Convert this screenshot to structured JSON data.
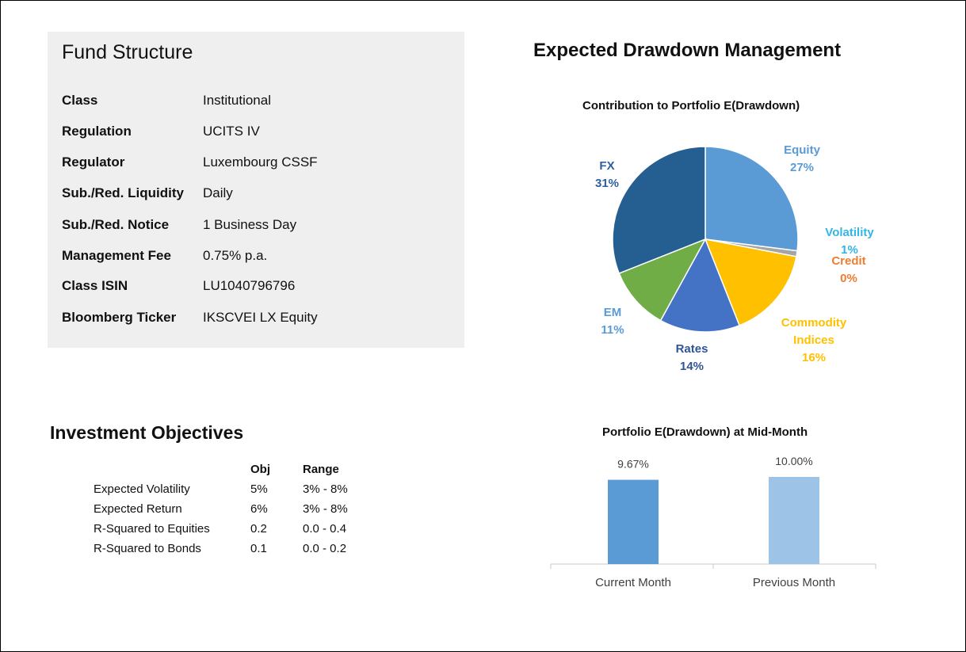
{
  "fund_structure": {
    "title": "Fund Structure",
    "rows": [
      {
        "label": "Class",
        "value": "Institutional"
      },
      {
        "label": "Regulation",
        "value": "UCITS IV"
      },
      {
        "label": "Regulator",
        "value": "Luxembourg CSSF"
      },
      {
        "label": "Sub./Red. Liquidity",
        "value": "Daily"
      },
      {
        "label": "Sub./Red. Notice",
        "value": "1 Business Day"
      },
      {
        "label": "Management Fee",
        "value": "0.75% p.a."
      },
      {
        "label": "Class ISIN",
        "value": "LU1040796796"
      },
      {
        "label": "Bloomberg Ticker",
        "value": "IKSCVEI LX Equity"
      }
    ]
  },
  "drawdown": {
    "title": "Expected Drawdown Management"
  },
  "objectives": {
    "title": "Investment Objectives",
    "headers": {
      "obj": "Obj",
      "range": "Range"
    },
    "rows": [
      {
        "label": "Expected Volatility",
        "obj": "5%",
        "range": "3% - 8%"
      },
      {
        "label": "Expected Return",
        "obj": "6%",
        "range": "3% - 8%"
      },
      {
        "label": "R-Squared to Equities",
        "obj": "0.2",
        "range": "0.0 - 0.4"
      },
      {
        "label": "R-Squared to Bonds",
        "obj": "0.1",
        "range": "0.0 - 0.2"
      }
    ]
  },
  "chart_data": [
    {
      "type": "pie",
      "title": "Contribution to Portfolio E(Drawdown)",
      "slices": [
        {
          "name": "Equity",
          "value": 27,
          "label": "27%",
          "color": "#5b9bd5",
          "label_color": "#5b9bd5"
        },
        {
          "name": "Volatility",
          "value": 1,
          "label": "1%",
          "color": "#a5a5a5",
          "label_color": "#33b5e5"
        },
        {
          "name": "Credit",
          "value": 0,
          "label": "0%",
          "color": "#ed7d31",
          "label_color": "#ed7d31"
        },
        {
          "name": "Commodity Indices",
          "value": 16,
          "label": "16%",
          "color": "#ffc000",
          "label_color": "#ffc000"
        },
        {
          "name": "Rates",
          "value": 14,
          "label": "14%",
          "color": "#4472c4",
          "label_color": "#2f5597"
        },
        {
          "name": "EM",
          "value": 11,
          "label": "11%",
          "color": "#70ad47",
          "label_color": "#5b9bd5"
        },
        {
          "name": "FX",
          "value": 31,
          "label": "31%",
          "color": "#255e91",
          "label_color": "#2e5e9e"
        }
      ],
      "legend": "none"
    },
    {
      "type": "bar",
      "title": "Portfolio E(Drawdown) at Mid-Month",
      "categories": [
        "Current Month",
        "Previous Month"
      ],
      "values": [
        9.67,
        10.0
      ],
      "data_labels": [
        "9.67%",
        "10.00%"
      ],
      "colors": [
        "#5b9bd5",
        "#9dc3e6"
      ],
      "ylim": [
        0,
        12
      ],
      "grid": false
    }
  ]
}
